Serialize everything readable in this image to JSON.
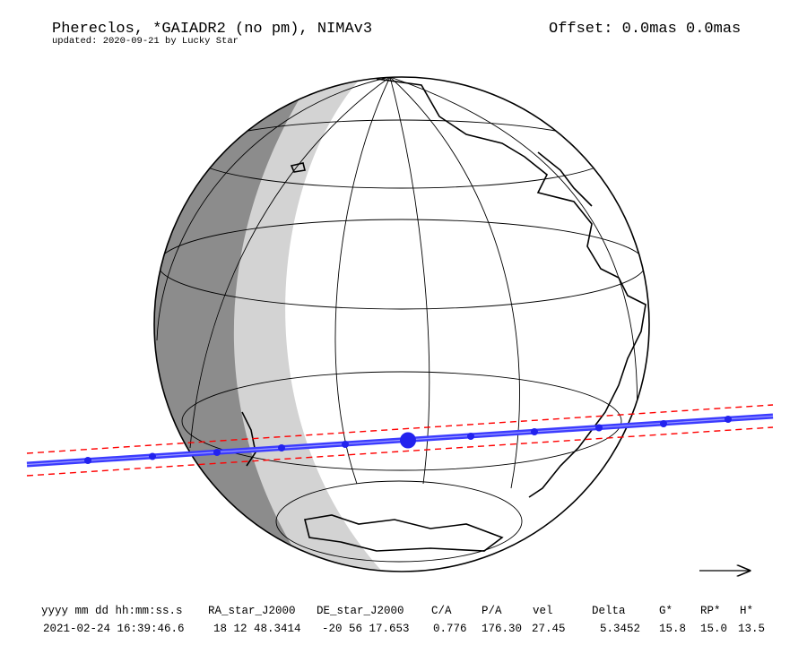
{
  "header": {
    "title": "Phereclos, *GAIADR2 (no pm), NIMAv3",
    "subtitle": "updated: 2020-09-21 by Lucky Star",
    "offset": "Offset: 0.0mas 0.0mas"
  },
  "table": {
    "columns": [
      "yyyy mm dd hh:mm:ss.s",
      "RA_star_J2000",
      "DE_star_J2000",
      "C/A",
      "P/A",
      "vel",
      "Delta",
      "G*",
      "RP*",
      "H*"
    ],
    "rows": [
      [
        "2021-02-24 16:39:46.6",
        "18 12 48.3414",
        "-20 56 17.653",
        "0.776",
        "176.30",
        "27.45",
        "5.3452",
        "15.8",
        "15.0",
        "13.5"
      ]
    ]
  }
}
